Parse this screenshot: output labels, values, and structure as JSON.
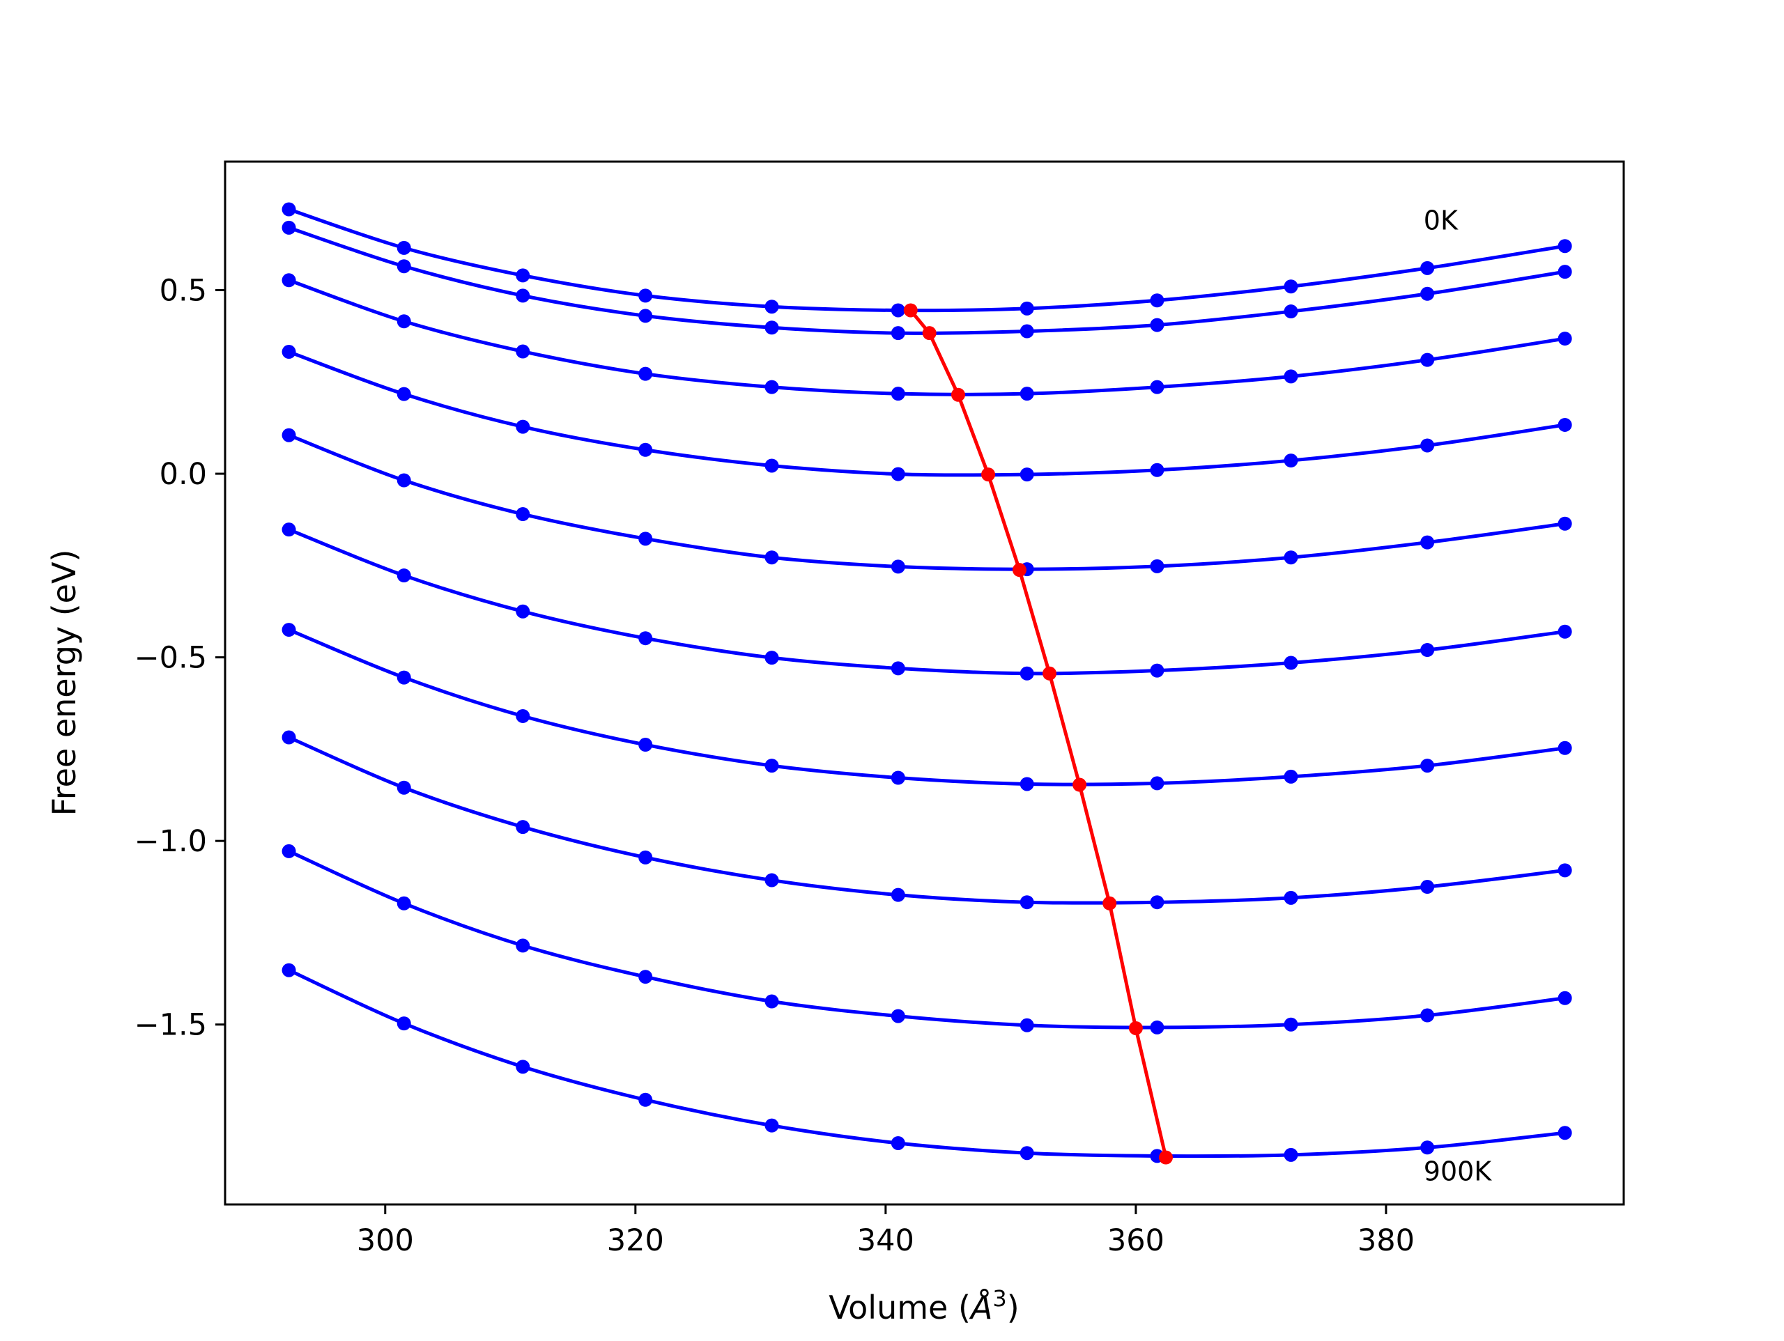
{
  "chart_data": {
    "type": "line",
    "xlabel": "Volume",
    "xlabel_unit_base": "Å",
    "xlabel_unit_exp": "3",
    "ylabel": "Free energy (eV)",
    "xlim": [
      287.2,
      399
    ],
    "ylim": [
      -1.99,
      0.85
    ],
    "xticks": [
      300,
      320,
      340,
      360,
      380
    ],
    "xtick_labels": [
      "300",
      "320",
      "340",
      "360",
      "380"
    ],
    "yticks": [
      0.5,
      0.0,
      -0.5,
      -1.0,
      -1.5
    ],
    "ytick_labels": [
      "0.5",
      "0.0",
      "−0.5",
      "−1.0",
      "−1.5"
    ],
    "grid": false,
    "annotations": [
      {
        "text": "0K",
        "x": 383,
        "y": 0.69
      },
      {
        "text": "900K",
        "x": 383,
        "y": -1.9
      }
    ],
    "x": [
      292.3,
      301.5,
      311.0,
      320.8,
      330.9,
      341.0,
      351.3,
      361.7,
      372.4,
      383.3,
      394.3
    ],
    "series": [
      {
        "values": [
          0.72,
          0.615,
          0.54,
          0.485,
          0.455,
          0.445,
          0.45,
          0.472,
          0.51,
          0.56,
          0.62
        ]
      },
      {
        "values": [
          0.67,
          0.565,
          0.485,
          0.43,
          0.398,
          0.383,
          0.388,
          0.405,
          0.442,
          0.49,
          0.55
        ]
      },
      {
        "values": [
          0.527,
          0.415,
          0.333,
          0.272,
          0.236,
          0.218,
          0.218,
          0.236,
          0.265,
          0.31,
          0.368
        ]
      },
      {
        "values": [
          0.332,
          0.217,
          0.128,
          0.065,
          0.022,
          -0.001,
          -0.002,
          0.01,
          0.036,
          0.077,
          0.133
        ]
      },
      {
        "values": [
          0.105,
          -0.018,
          -0.11,
          -0.177,
          -0.228,
          -0.253,
          -0.26,
          -0.252,
          -0.228,
          -0.187,
          -0.136
        ]
      },
      {
        "values": [
          -0.152,
          -0.277,
          -0.375,
          -0.448,
          -0.501,
          -0.53,
          -0.544,
          -0.536,
          -0.515,
          -0.48,
          -0.43
        ]
      },
      {
        "values": [
          -0.425,
          -0.555,
          -0.66,
          -0.738,
          -0.795,
          -0.828,
          -0.845,
          -0.843,
          -0.825,
          -0.795,
          -0.747
        ]
      },
      {
        "values": [
          -0.718,
          -0.855,
          -0.962,
          -1.045,
          -1.107,
          -1.147,
          -1.167,
          -1.167,
          -1.155,
          -1.125,
          -1.08
        ]
      },
      {
        "values": [
          -1.028,
          -1.17,
          -1.285,
          -1.37,
          -1.437,
          -1.477,
          -1.502,
          -1.508,
          -1.5,
          -1.475,
          -1.428
        ]
      },
      {
        "values": [
          -1.352,
          -1.497,
          -1.615,
          -1.705,
          -1.775,
          -1.823,
          -1.85,
          -1.858,
          -1.855,
          -1.835,
          -1.795
        ]
      }
    ],
    "minima": {
      "x": [
        342.0,
        343.5,
        345.8,
        348.2,
        350.7,
        353.1,
        355.5,
        357.9,
        360.0,
        362.4
      ],
      "y": [
        0.445,
        0.383,
        0.215,
        -0.002,
        -0.262,
        -0.544,
        -0.847,
        -1.17,
        -1.51,
        -1.862
      ]
    },
    "colors": {
      "curves": "#0000ff",
      "minima": "#ff0000",
      "axes": "#000000",
      "background": "#ffffff"
    }
  }
}
